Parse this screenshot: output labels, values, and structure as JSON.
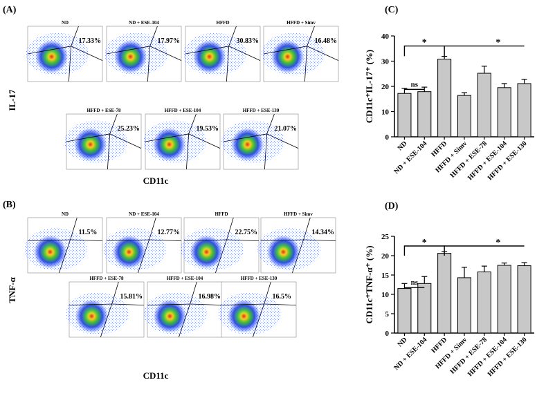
{
  "panel_a": {
    "label": "(A)",
    "y_label": "IL-17",
    "x_label": "CD11c",
    "plots": [
      {
        "title": "ND",
        "percent": "17.33%"
      },
      {
        "title": "ND + ESE-104",
        "percent": "17.97%"
      },
      {
        "title": "HFFD",
        "percent": "30.83%"
      },
      {
        "title": "HFFD + Simv",
        "percent": "16.48%"
      },
      {
        "title": "HFFD + ESE-78",
        "percent": "25.23%"
      },
      {
        "title": "HFFD + ESE-104",
        "percent": "19.53%"
      },
      {
        "title": "HFFD + ESE-130",
        "percent": "21.07%"
      }
    ]
  },
  "panel_b": {
    "label": "(B)",
    "y_label": "TNF-α",
    "x_label": "CD11c",
    "plots": [
      {
        "title": "ND",
        "percent": "11.5%"
      },
      {
        "title": "ND + ESE-104",
        "percent": "12.77%"
      },
      {
        "title": "HFFD",
        "percent": "22.75%"
      },
      {
        "title": "HFFD + Simv",
        "percent": "14.34%"
      },
      {
        "title": "HFFD + ESE-78",
        "percent": "15.81%"
      },
      {
        "title": "HFFD + ESE-104",
        "percent": "16.98%"
      },
      {
        "title": "HFFD + ESE-130",
        "percent": "16.5%"
      }
    ]
  },
  "chart_data": [
    {
      "type": "bar",
      "label": "(C)",
      "y_label": "CD11c⁺IL-17⁺ (%)",
      "categories": [
        "ND",
        "ND + ESE-104",
        "HFFD",
        "HFFD + Simv",
        "HFFD + ESE-78",
        "HFFD + ESE-104",
        "HFFD + ESE-130"
      ],
      "values": [
        17.2,
        17.9,
        30.8,
        16.4,
        25.2,
        19.5,
        21.1
      ],
      "errors": [
        2,
        1.8,
        1.1,
        1.1,
        2.8,
        1.6,
        1.7
      ],
      "color": "#c8c8c8",
      "ylim": [
        0,
        40
      ],
      "yticks": [
        0,
        10,
        20,
        30,
        40
      ],
      "annotations": [
        {
          "text": "*"
        },
        {
          "text": "ns"
        },
        {
          "text": "*"
        }
      ]
    },
    {
      "type": "bar",
      "label": "(D)",
      "y_label": "CD11c⁺TNF-α⁺ (%)",
      "categories": [
        "ND",
        "ND + ESE-104",
        "HFFD",
        "HFFD + Simv",
        "HFFD + ESE-78",
        "HFFD + ESE-104",
        "HFFD + ESE-130"
      ],
      "values": [
        11.5,
        12.8,
        20.6,
        14.3,
        15.8,
        17.5,
        17.4
      ],
      "errors": [
        1.3,
        1.8,
        0.4,
        2.7,
        1.5,
        0.6,
        0.8
      ],
      "color": "#c8c8c8",
      "ylim": [
        0,
        25
      ],
      "yticks": [
        0,
        5,
        10,
        15,
        20,
        25
      ],
      "annotations": [
        {
          "text": "*"
        },
        {
          "text": "ns"
        },
        {
          "text": "*"
        }
      ]
    }
  ]
}
